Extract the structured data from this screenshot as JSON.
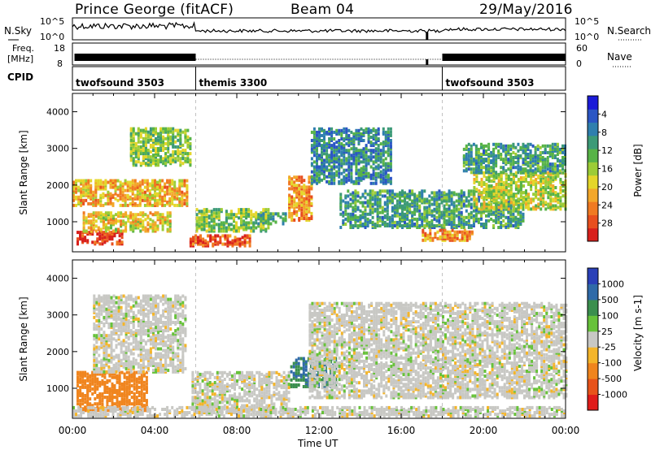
{
  "header": {
    "station": "Prince George (fitACF)",
    "beam": "Beam 04",
    "date": "29/May/2016"
  },
  "strips": {
    "nsky_label": "N.Sky",
    "nsky_ticks": [
      "10^5",
      "10^0"
    ],
    "nsearch_label": "N.Search",
    "nsearch_ticks": [
      "10^5",
      "10^0"
    ],
    "freq_label_1": "Freq.",
    "freq_label_2": "[MHz]",
    "freq_ticks": [
      "18",
      "8"
    ],
    "nave_label": "Nave",
    "nave_ticks": [
      "60",
      "0"
    ],
    "cpid_label": "CPID",
    "cpid_segments": [
      {
        "name": "twofsound 3503",
        "start_hour": 0,
        "end_hour": 6
      },
      {
        "name": "themis 3300",
        "start_hour": 6,
        "end_hour": 18
      },
      {
        "name": "twofsound 3503",
        "start_hour": 18,
        "end_hour": 24
      }
    ]
  },
  "chart_data": [
    {
      "type": "heatmap",
      "panel": "power",
      "xlabel": "Time UT",
      "ylabel": "Slant Range [km]",
      "x_ticks": [
        "00:00",
        "04:00",
        "08:00",
        "12:00",
        "16:00",
        "20:00",
        "00:00"
      ],
      "xlim_hours": [
        0,
        24
      ],
      "ylim": [
        180,
        4500
      ],
      "y_ticks": [
        1000,
        2000,
        3000,
        4000
      ],
      "colorbar": {
        "label": "Power [dB]",
        "tick_labels": [
          "4",
          "8",
          "12",
          "16",
          "20",
          "24",
          "28"
        ],
        "range": [
          0,
          30
        ],
        "colors": [
          "#1b1bd8",
          "#2b56c4",
          "#2f7fae",
          "#3c9a77",
          "#57b347",
          "#9ccc36",
          "#e4d62a",
          "#f3a72a",
          "#f07a22",
          "#e84f1e",
          "#d8201c"
        ]
      },
      "echo_regions": [
        {
          "t0": 0.2,
          "t1": 2.4,
          "r0": 350,
          "r1": 700,
          "v": 28
        },
        {
          "t0": 0.5,
          "t1": 4.8,
          "r0": 700,
          "r1": 1200,
          "v": 18
        },
        {
          "t0": 0.0,
          "t1": 5.6,
          "r0": 1400,
          "r1": 2100,
          "v": 20
        },
        {
          "t0": 2.8,
          "t1": 5.8,
          "r0": 2500,
          "r1": 3500,
          "v": 14
        },
        {
          "t0": 5.7,
          "t1": 8.6,
          "r0": 300,
          "r1": 600,
          "v": 26
        },
        {
          "t0": 6.0,
          "t1": 9.5,
          "r0": 700,
          "r1": 1300,
          "v": 14
        },
        {
          "t0": 9.0,
          "t1": 10.4,
          "r0": 900,
          "r1": 1200,
          "v": 10
        },
        {
          "t0": 10.5,
          "t1": 11.6,
          "r0": 1000,
          "r1": 2200,
          "v": 22
        },
        {
          "t0": 11.6,
          "t1": 15.5,
          "r0": 2000,
          "r1": 3500,
          "v": 8
        },
        {
          "t0": 13.0,
          "t1": 22.0,
          "r0": 800,
          "r1": 1800,
          "v": 10
        },
        {
          "t0": 17.0,
          "t1": 19.5,
          "r0": 450,
          "r1": 750,
          "v": 22
        },
        {
          "t0": 19.5,
          "t1": 24.0,
          "r0": 1300,
          "r1": 2300,
          "v": 16
        },
        {
          "t0": 19.0,
          "t1": 24.0,
          "r0": 2300,
          "r1": 3100,
          "v": 10
        }
      ]
    },
    {
      "type": "heatmap",
      "panel": "velocity",
      "xlabel": "Time UT",
      "ylabel": "Slant Range [km]",
      "x_ticks": [
        "00:00",
        "04:00",
        "08:00",
        "12:00",
        "16:00",
        "20:00",
        "00:00"
      ],
      "xlim_hours": [
        0,
        24
      ],
      "ylim": [
        180,
        4500
      ],
      "y_ticks": [
        1000,
        2000,
        3000,
        4000
      ],
      "colorbar": {
        "label": "Velocity [m s-1]",
        "tick_labels": [
          "1000",
          "500",
          "100",
          "25",
          "-25",
          "-100",
          "-500",
          "-1000"
        ],
        "colors": [
          "#2a40b8",
          "#2f6aa8",
          "#3b8f4e",
          "#67c23a",
          "#c8c8c4",
          "#f4b52a",
          "#f0851e",
          "#e8531a",
          "#e01c1a"
        ]
      },
      "echo_regions": [
        {
          "t0": 0.2,
          "t1": 3.6,
          "r0": 350,
          "r1": 1400,
          "v": -120
        },
        {
          "t0": 1.0,
          "t1": 5.5,
          "r0": 1400,
          "r1": 3500,
          "v": 0
        },
        {
          "t0": 5.8,
          "t1": 10.5,
          "r0": 300,
          "r1": 1400,
          "v": 0
        },
        {
          "t0": 10.6,
          "t1": 12.8,
          "r0": 1000,
          "r1": 1800,
          "v": 300
        },
        {
          "t0": 11.5,
          "t1": 24.0,
          "r0": 700,
          "r1": 3300,
          "v": 0
        },
        {
          "t0": 0.0,
          "t1": 24.0,
          "r0": 200,
          "r1": 450,
          "v": 0
        }
      ]
    }
  ]
}
